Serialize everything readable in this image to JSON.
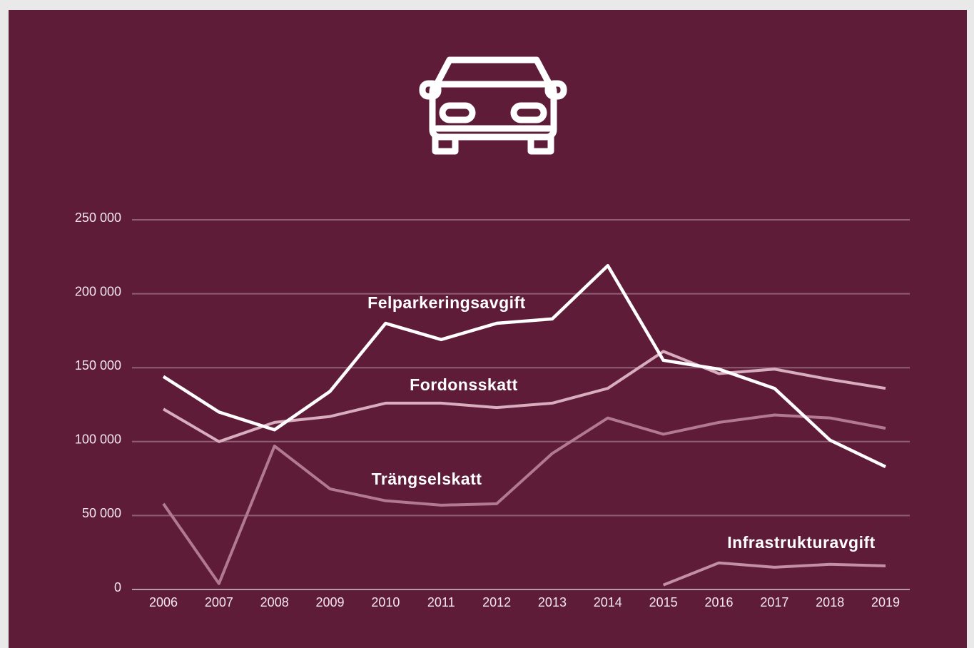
{
  "chart_data": {
    "type": "line",
    "categories": [
      "2006",
      "2007",
      "2008",
      "2009",
      "2010",
      "2011",
      "2012",
      "2013",
      "2014",
      "2015",
      "2016",
      "2017",
      "2018",
      "2019"
    ],
    "series": [
      {
        "name": "Felparkeringsavgift",
        "color": "#ffffff",
        "values": [
          144000,
          120000,
          108000,
          134000,
          180000,
          169000,
          180000,
          183000,
          219000,
          155000,
          149000,
          136000,
          101000,
          83000
        ]
      },
      {
        "name": "Fordonsskatt",
        "color": "#d8adbe",
        "values": [
          122000,
          100000,
          113000,
          117000,
          126000,
          126000,
          123000,
          126000,
          136000,
          161000,
          146000,
          149000,
          142000,
          136000
        ]
      },
      {
        "name": "Trängselskatt",
        "color": "#b27a92",
        "values": [
          58000,
          4000,
          97000,
          68000,
          60000,
          57000,
          58000,
          92000,
          116000,
          105000,
          113000,
          118000,
          116000,
          109000
        ]
      },
      {
        "name": "Infrastrukturavgift",
        "color": "#c38fa5",
        "values": [
          null,
          null,
          null,
          null,
          null,
          null,
          null,
          null,
          null,
          3000,
          18000,
          15000,
          17000,
          16000
        ]
      }
    ],
    "ylim": [
      0,
      250000
    ],
    "yticks": [
      0,
      {
        "value": 50000,
        "label": "50 000"
      },
      {
        "value": 100000,
        "label": "100 000"
      },
      {
        "value": 150000,
        "label": "150 000"
      },
      {
        "value": 200000,
        "label": "200 000"
      },
      {
        "value": 250000,
        "label": "250 000"
      }
    ],
    "grid": true
  }
}
